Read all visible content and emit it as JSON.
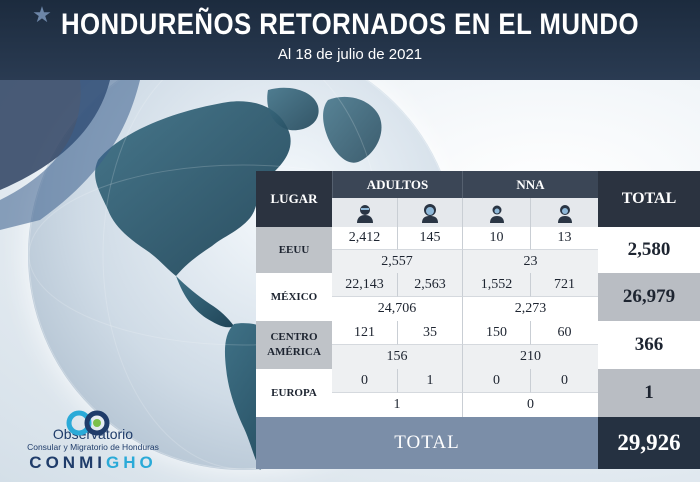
{
  "header": {
    "title": "HONDUREÑOS RETORNADOS EN EL MUNDO",
    "subtitle": "Al 18 de julio de 2021"
  },
  "table": {
    "col_lugar": "LUGAR",
    "col_adultos": "ADULTOS",
    "col_nna": "NNA",
    "col_total": "TOTAL",
    "icons": [
      "adult-man-icon",
      "adult-woman-icon",
      "child-boy-icon",
      "child-girl-icon"
    ],
    "rows": [
      {
        "lugar": "EEUU",
        "adult_m": "2,412",
        "adult_f": "145",
        "nna_m": "10",
        "nna_f": "13",
        "adult_sum": "2,557",
        "nna_sum": "23",
        "total": "2,580"
      },
      {
        "lugar": "MÉXICO",
        "adult_m": "22,143",
        "adult_f": "2,563",
        "nna_m": "1,552",
        "nna_f": "721",
        "adult_sum": "24,706",
        "nna_sum": "2,273",
        "total": "26,979"
      },
      {
        "lugar": "CENTRO AMÉRICA",
        "adult_m": "121",
        "adult_f": "35",
        "nna_m": "150",
        "nna_f": "60",
        "adult_sum": "156",
        "nna_sum": "210",
        "total": "366"
      },
      {
        "lugar": "EUROPA",
        "adult_m": "0",
        "adult_f": "1",
        "nna_m": "0",
        "nna_f": "0",
        "adult_sum": "1",
        "nna_sum": "0",
        "total": "1"
      }
    ],
    "footer_label": "TOTAL",
    "grand_total": "29,926"
  },
  "logo": {
    "line1": "Observatorio",
    "line2": "Consular y Migratorio de Honduras",
    "brand_a": "CONMI",
    "brand_b": "GHO"
  },
  "colors": {
    "header_bg": "#1c2b3e",
    "table_dark": "#2b3340",
    "total_bar": "#7b8ea8",
    "land": "#2f5a6e"
  }
}
